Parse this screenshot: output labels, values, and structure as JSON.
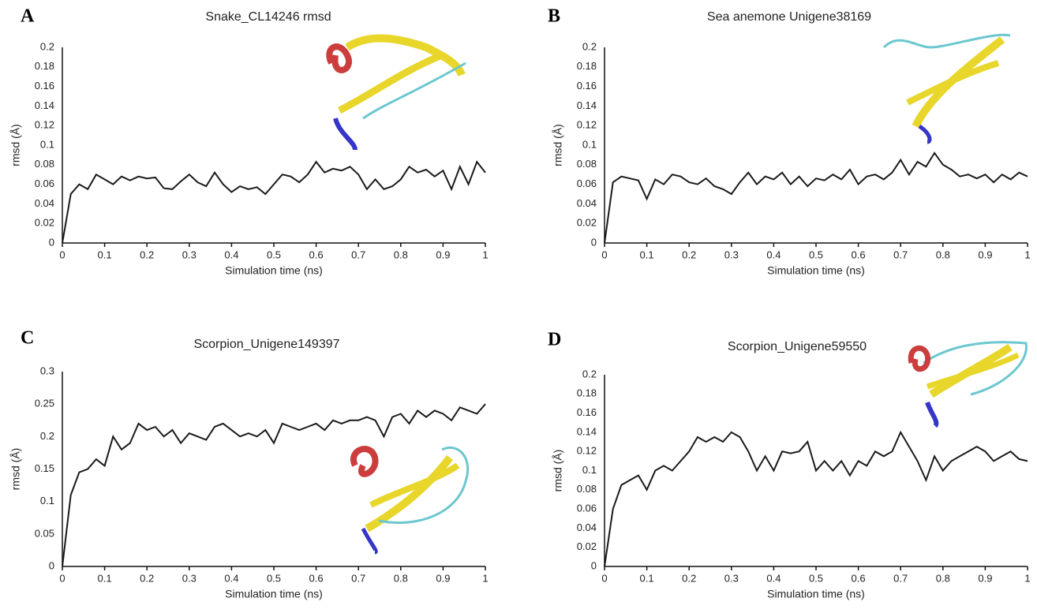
{
  "chart_data": [
    {
      "type": "line",
      "label": "A",
      "title": "Snake_CL14246 rmsd",
      "x_label": "Simulation time (ns)",
      "y_label": "rmsd (Å)",
      "x": [
        0,
        0.02,
        0.04,
        0.06,
        0.08,
        0.1,
        0.12,
        0.14,
        0.16,
        0.18,
        0.2,
        0.22,
        0.24,
        0.26,
        0.28,
        0.3,
        0.32,
        0.34,
        0.36,
        0.38,
        0.4,
        0.42,
        0.44,
        0.46,
        0.48,
        0.5,
        0.52,
        0.54,
        0.56,
        0.58,
        0.6,
        0.62,
        0.64,
        0.66,
        0.68,
        0.7,
        0.72,
        0.74,
        0.76,
        0.78,
        0.8,
        0.82,
        0.84,
        0.86,
        0.88,
        0.9,
        0.92,
        0.94,
        0.96,
        0.98,
        1
      ],
      "values": [
        0,
        0.05,
        0.06,
        0.055,
        0.07,
        0.065,
        0.06,
        0.068,
        0.064,
        0.068,
        0.066,
        0.067,
        0.056,
        0.055,
        0.063,
        0.07,
        0.062,
        0.058,
        0.072,
        0.06,
        0.052,
        0.058,
        0.055,
        0.057,
        0.05,
        0.06,
        0.07,
        0.068,
        0.062,
        0.07,
        0.083,
        0.072,
        0.076,
        0.074,
        0.078,
        0.07,
        0.055,
        0.065,
        0.055,
        0.058,
        0.065,
        0.078,
        0.072,
        0.075,
        0.068,
        0.074,
        0.055,
        0.078,
        0.06,
        0.083,
        0.072
      ],
      "color": "#1a1a1a",
      "xlim": [
        0,
        1
      ],
      "xticks": [
        0,
        0.1,
        0.2,
        0.3,
        0.4,
        0.5,
        0.6,
        0.7,
        0.8,
        0.9,
        1
      ],
      "ylim": [
        0,
        0.2
      ],
      "yticks": [
        0,
        0.02,
        0.04,
        0.06,
        0.08,
        0.1,
        0.12,
        0.14,
        0.16,
        0.18,
        0.2
      ],
      "grid": false
    },
    {
      "type": "line",
      "label": "B",
      "title": "Sea anemone Unigene38169",
      "x_label": "Simulation time (ns)",
      "y_label": "rmsd (Å)",
      "x": [
        0,
        0.02,
        0.04,
        0.06,
        0.08,
        0.1,
        0.12,
        0.14,
        0.16,
        0.18,
        0.2,
        0.22,
        0.24,
        0.26,
        0.28,
        0.3,
        0.32,
        0.34,
        0.36,
        0.38,
        0.4,
        0.42,
        0.44,
        0.46,
        0.48,
        0.5,
        0.52,
        0.54,
        0.56,
        0.58,
        0.6,
        0.62,
        0.64,
        0.66,
        0.68,
        0.7,
        0.72,
        0.74,
        0.76,
        0.78,
        0.8,
        0.82,
        0.84,
        0.86,
        0.88,
        0.9,
        0.92,
        0.94,
        0.96,
        0.98,
        1
      ],
      "values": [
        0,
        0.062,
        0.068,
        0.066,
        0.064,
        0.045,
        0.065,
        0.06,
        0.07,
        0.068,
        0.062,
        0.06,
        0.066,
        0.058,
        0.055,
        0.05,
        0.062,
        0.072,
        0.06,
        0.068,
        0.065,
        0.072,
        0.06,
        0.068,
        0.058,
        0.066,
        0.064,
        0.07,
        0.065,
        0.075,
        0.06,
        0.068,
        0.07,
        0.065,
        0.072,
        0.085,
        0.07,
        0.083,
        0.078,
        0.092,
        0.08,
        0.075,
        0.068,
        0.07,
        0.066,
        0.07,
        0.062,
        0.07,
        0.065,
        0.072,
        0.068
      ],
      "color": "#1a1a1a",
      "xlim": [
        0,
        1
      ],
      "xticks": [
        0,
        0.1,
        0.2,
        0.3,
        0.4,
        0.5,
        0.6,
        0.7,
        0.8,
        0.9,
        1
      ],
      "ylim": [
        0,
        0.2
      ],
      "yticks": [
        0,
        0.02,
        0.04,
        0.06,
        0.08,
        0.1,
        0.12,
        0.14,
        0.16,
        0.18,
        0.2
      ],
      "grid": false
    },
    {
      "type": "line",
      "label": "C",
      "title": "Scorpion_Unigene149397",
      "x_label": "Simulation time (ns)",
      "y_label": "rmsd (Å)",
      "x": [
        0,
        0.02,
        0.04,
        0.06,
        0.08,
        0.1,
        0.12,
        0.14,
        0.16,
        0.18,
        0.2,
        0.22,
        0.24,
        0.26,
        0.28,
        0.3,
        0.32,
        0.34,
        0.36,
        0.38,
        0.4,
        0.42,
        0.44,
        0.46,
        0.48,
        0.5,
        0.52,
        0.54,
        0.56,
        0.58,
        0.6,
        0.62,
        0.64,
        0.66,
        0.68,
        0.7,
        0.72,
        0.74,
        0.76,
        0.78,
        0.8,
        0.82,
        0.84,
        0.86,
        0.88,
        0.9,
        0.92,
        0.94,
        0.96,
        0.98,
        1
      ],
      "values": [
        0,
        0.11,
        0.145,
        0.15,
        0.165,
        0.155,
        0.2,
        0.18,
        0.19,
        0.22,
        0.21,
        0.215,
        0.2,
        0.21,
        0.19,
        0.205,
        0.2,
        0.195,
        0.215,
        0.22,
        0.21,
        0.2,
        0.205,
        0.2,
        0.21,
        0.19,
        0.22,
        0.215,
        0.21,
        0.215,
        0.22,
        0.21,
        0.225,
        0.22,
        0.225,
        0.225,
        0.23,
        0.225,
        0.2,
        0.23,
        0.235,
        0.22,
        0.24,
        0.23,
        0.24,
        0.235,
        0.225,
        0.245,
        0.24,
        0.235,
        0.25
      ],
      "color": "#1a1a1a",
      "xlim": [
        0,
        1
      ],
      "xticks": [
        0,
        0.1,
        0.2,
        0.3,
        0.4,
        0.5,
        0.6,
        0.7,
        0.8,
        0.9,
        1
      ],
      "ylim": [
        0,
        0.3
      ],
      "yticks": [
        0,
        0.05,
        0.1,
        0.15,
        0.2,
        0.25,
        0.3
      ],
      "grid": false
    },
    {
      "type": "line",
      "label": "D",
      "title": "Scorpion_Unigene59550",
      "x_label": "Simulation time (ns)",
      "y_label": "rmsd (Å)",
      "x": [
        0,
        0.02,
        0.04,
        0.06,
        0.08,
        0.1,
        0.12,
        0.14,
        0.16,
        0.18,
        0.2,
        0.22,
        0.24,
        0.26,
        0.28,
        0.3,
        0.32,
        0.34,
        0.36,
        0.38,
        0.4,
        0.42,
        0.44,
        0.46,
        0.48,
        0.5,
        0.52,
        0.54,
        0.56,
        0.58,
        0.6,
        0.62,
        0.64,
        0.66,
        0.68,
        0.7,
        0.72,
        0.74,
        0.76,
        0.78,
        0.8,
        0.82,
        0.84,
        0.86,
        0.88,
        0.9,
        0.92,
        0.94,
        0.96,
        0.98,
        1
      ],
      "values": [
        0,
        0.06,
        0.085,
        0.09,
        0.095,
        0.08,
        0.1,
        0.105,
        0.1,
        0.11,
        0.12,
        0.135,
        0.13,
        0.135,
        0.13,
        0.14,
        0.135,
        0.12,
        0.1,
        0.115,
        0.1,
        0.12,
        0.118,
        0.12,
        0.13,
        0.1,
        0.11,
        0.1,
        0.11,
        0.095,
        0.11,
        0.105,
        0.12,
        0.115,
        0.12,
        0.14,
        0.125,
        0.11,
        0.09,
        0.115,
        0.1,
        0.11,
        0.115,
        0.12,
        0.125,
        0.12,
        0.11,
        0.115,
        0.12,
        0.112,
        0.11
      ],
      "color": "#1a1a1a",
      "xlim": [
        0,
        1
      ],
      "xticks": [
        0,
        0.1,
        0.2,
        0.3,
        0.4,
        0.5,
        0.6,
        0.7,
        0.8,
        0.9,
        1
      ],
      "ylim": [
        0,
        0.2
      ],
      "yticks": [
        0,
        0.02,
        0.04,
        0.06,
        0.08,
        0.1,
        0.12,
        0.14,
        0.16,
        0.18,
        0.2
      ],
      "grid": false
    }
  ]
}
